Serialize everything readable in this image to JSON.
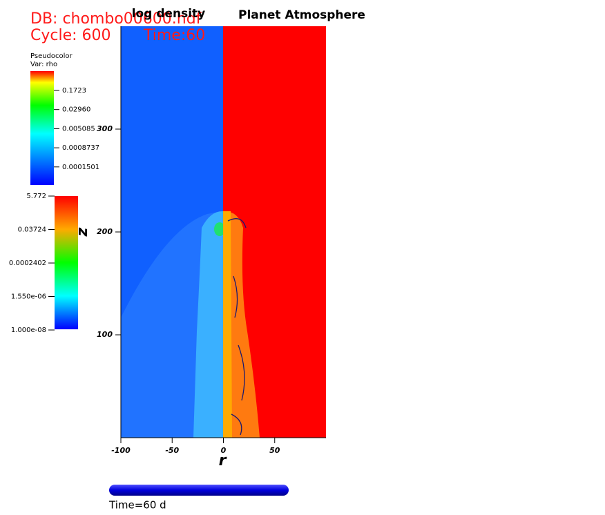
{
  "header": {
    "db": "DB: chombo00600.hdf",
    "cycle": "Cycle: 600",
    "time": "Time:60"
  },
  "chart_data": {
    "type": "field",
    "titles": [
      "log density",
      "Planet Atmosphere"
    ],
    "x_label": "r",
    "y_label": "z",
    "xlim": [
      -100,
      100
    ],
    "ylim": [
      0,
      400
    ],
    "xticks": [
      -100,
      -50,
      0,
      50
    ],
    "yticks": [
      100,
      200,
      300
    ]
  },
  "legends": [
    {
      "title": "Pseudocolor",
      "var": "Var: rho",
      "ticks": [
        {
          "value": 0.1723,
          "label": "0.1723"
        },
        {
          "value": 0.0296,
          "label": "0.02960"
        },
        {
          "value": 0.005085,
          "label": "0.005085"
        },
        {
          "value": 0.0008737,
          "label": "0.0008737"
        },
        {
          "value": 0.0001501,
          "label": "0.0001501"
        }
      ]
    },
    {
      "ticks": [
        {
          "value": 5.772,
          "label": "5.772"
        },
        {
          "value": 0.03724,
          "label": "0.03724"
        },
        {
          "value": 0.0002402,
          "label": "0.0002402"
        },
        {
          "value": 1.55e-06,
          "label": "1.550e-06"
        },
        {
          "value": 1e-08,
          "label": "1.000e-08"
        }
      ]
    }
  ],
  "time_label": "Time=60 d"
}
